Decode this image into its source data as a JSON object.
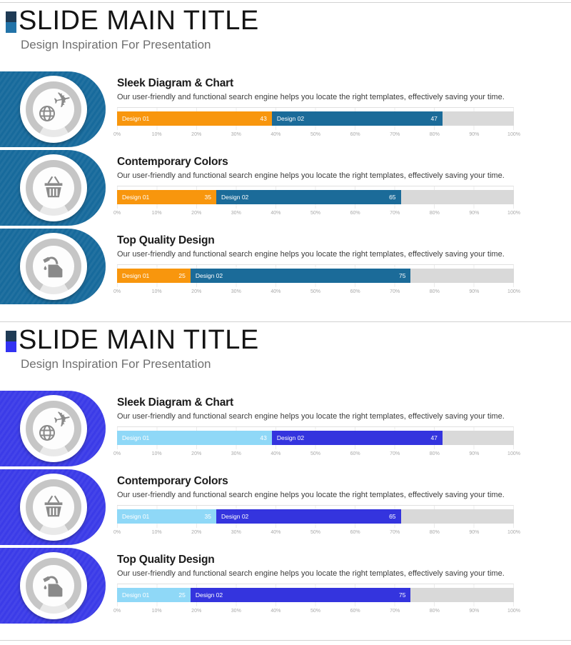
{
  "axis": {
    "labels": [
      "0%",
      "10%",
      "20%",
      "30%",
      "40%",
      "50%",
      "60%",
      "70%",
      "80%",
      "90%",
      "100%"
    ]
  },
  "slides": [
    {
      "title": "SLIDE MAIN TITLE",
      "subtitle": "Design Inspiration For Presentation",
      "theme": {
        "accent": "#176A9C",
        "marker_top": "#1F3B55",
        "marker_bottom": "#2273A8",
        "series1": "#F8960D",
        "series2": "#1B6B99",
        "track": "#D9D9D9"
      },
      "sections": [
        {
          "title": "Sleek Diagram & Chart",
          "description": "Our user-friendly and functional search engine helps you locate the right templates, effectively saving your time.",
          "icon": "plane-globe",
          "bar": {
            "segments": [
              {
                "label": "Design 01",
                "value": 43,
                "width_pct": 39
              },
              {
                "label": "Design 02",
                "value": 47,
                "width_pct": 43
              }
            ]
          }
        },
        {
          "title": "Contemporary Colors",
          "description": "Our user-friendly and functional search engine helps you locate the right templates, effectively saving your time.",
          "icon": "shopping-basket",
          "bar": {
            "segments": [
              {
                "label": "Design 01",
                "value": 35,
                "width_pct": 25
              },
              {
                "label": "Design 02",
                "value": 65,
                "width_pct": 46.5
              }
            ]
          }
        },
        {
          "title": "Top Quality Design",
          "description": "Our user-friendly and functional search engine helps you locate the right templates, effectively saving your time.",
          "icon": "fuel-can",
          "bar": {
            "segments": [
              {
                "label": "Design 01",
                "value": 25,
                "width_pct": 18.5
              },
              {
                "label": "Design 02",
                "value": 75,
                "width_pct": 55.5
              }
            ]
          }
        }
      ]
    },
    {
      "title": "SLIDE MAIN TITLE",
      "subtitle": "Design Inspiration For Presentation",
      "theme": {
        "accent": "#3B3BE8",
        "marker_top": "#1F3B55",
        "marker_bottom": "#3232F2",
        "series1": "#8FD8F7",
        "series2": "#3434DE",
        "track": "#D9D9D9"
      },
      "sections": [
        {
          "title": "Sleek Diagram & Chart",
          "description": "Our user-friendly and functional search engine helps you locate the right templates, effectively saving your time.",
          "icon": "plane-globe",
          "bar": {
            "segments": [
              {
                "label": "Design 01",
                "value": 43,
                "width_pct": 39
              },
              {
                "label": "Design 02",
                "value": 47,
                "width_pct": 43
              }
            ]
          }
        },
        {
          "title": "Contemporary Colors",
          "description": "Our user-friendly and functional search engine helps you locate the right templates, effectively saving your time.",
          "icon": "shopping-basket",
          "bar": {
            "segments": [
              {
                "label": "Design 01",
                "value": 35,
                "width_pct": 25
              },
              {
                "label": "Design 02",
                "value": 65,
                "width_pct": 46.5
              }
            ]
          }
        },
        {
          "title": "Top Quality Design",
          "description": "Our user-friendly and functional search engine helps you locate the right templates, effectively saving your time.",
          "icon": "fuel-can",
          "bar": {
            "segments": [
              {
                "label": "Design 01",
                "value": 25,
                "width_pct": 18.5
              },
              {
                "label": "Design 02",
                "value": 75,
                "width_pct": 55.5
              }
            ]
          }
        }
      ]
    }
  ],
  "chart_data": [
    {
      "type": "bar",
      "orientation": "horizontal",
      "stacked": true,
      "slide": 1,
      "title": "Sleek Diagram & Chart",
      "series": [
        {
          "name": "Design 01",
          "values": [
            43
          ]
        },
        {
          "name": "Design 02",
          "values": [
            47
          ]
        }
      ],
      "xlim": [
        0,
        100
      ],
      "x_ticks": [
        "0%",
        "10%",
        "20%",
        "30%",
        "40%",
        "50%",
        "60%",
        "70%",
        "80%",
        "90%",
        "100%"
      ],
      "colors": [
        "#F8960D",
        "#1B6B99"
      ],
      "track_color": "#D9D9D9",
      "grid": true
    },
    {
      "type": "bar",
      "orientation": "horizontal",
      "stacked": true,
      "slide": 1,
      "title": "Contemporary Colors",
      "series": [
        {
          "name": "Design 01",
          "values": [
            35
          ]
        },
        {
          "name": "Design 02",
          "values": [
            65
          ]
        }
      ],
      "xlim": [
        0,
        100
      ],
      "x_ticks": [
        "0%",
        "10%",
        "20%",
        "30%",
        "40%",
        "50%",
        "60%",
        "70%",
        "80%",
        "90%",
        "100%"
      ],
      "colors": [
        "#F8960D",
        "#1B6B99"
      ],
      "track_color": "#D9D9D9",
      "grid": true
    },
    {
      "type": "bar",
      "orientation": "horizontal",
      "stacked": true,
      "slide": 1,
      "title": "Top Quality Design",
      "series": [
        {
          "name": "Design 01",
          "values": [
            25
          ]
        },
        {
          "name": "Design 02",
          "values": [
            75
          ]
        }
      ],
      "xlim": [
        0,
        100
      ],
      "x_ticks": [
        "0%",
        "10%",
        "20%",
        "30%",
        "40%",
        "50%",
        "60%",
        "70%",
        "80%",
        "90%",
        "100%"
      ],
      "colors": [
        "#F8960D",
        "#1B6B99"
      ],
      "track_color": "#D9D9D9",
      "grid": true
    },
    {
      "type": "bar",
      "orientation": "horizontal",
      "stacked": true,
      "slide": 2,
      "title": "Sleek Diagram & Chart",
      "series": [
        {
          "name": "Design 01",
          "values": [
            43
          ]
        },
        {
          "name": "Design 02",
          "values": [
            47
          ]
        }
      ],
      "xlim": [
        0,
        100
      ],
      "x_ticks": [
        "0%",
        "10%",
        "20%",
        "30%",
        "40%",
        "50%",
        "60%",
        "70%",
        "80%",
        "90%",
        "100%"
      ],
      "colors": [
        "#8FD8F7",
        "#3434DE"
      ],
      "track_color": "#D9D9D9",
      "grid": true
    },
    {
      "type": "bar",
      "orientation": "horizontal",
      "stacked": true,
      "slide": 2,
      "title": "Contemporary Colors",
      "series": [
        {
          "name": "Design 01",
          "values": [
            35
          ]
        },
        {
          "name": "Design 02",
          "values": [
            65
          ]
        }
      ],
      "xlim": [
        0,
        100
      ],
      "x_ticks": [
        "0%",
        "10%",
        "20%",
        "30%",
        "40%",
        "50%",
        "60%",
        "70%",
        "80%",
        "90%",
        "100%"
      ],
      "colors": [
        "#8FD8F7",
        "#3434DE"
      ],
      "track_color": "#D9D9D9",
      "grid": true
    },
    {
      "type": "bar",
      "orientation": "horizontal",
      "stacked": true,
      "slide": 2,
      "title": "Top Quality Design",
      "series": [
        {
          "name": "Design 01",
          "values": [
            25
          ]
        },
        {
          "name": "Design 02",
          "values": [
            75
          ]
        }
      ],
      "xlim": [
        0,
        100
      ],
      "x_ticks": [
        "0%",
        "10%",
        "20%",
        "30%",
        "40%",
        "50%",
        "60%",
        "70%",
        "80%",
        "90%",
        "100%"
      ],
      "colors": [
        "#8FD8F7",
        "#3434DE"
      ],
      "track_color": "#D9D9D9",
      "grid": true
    }
  ]
}
